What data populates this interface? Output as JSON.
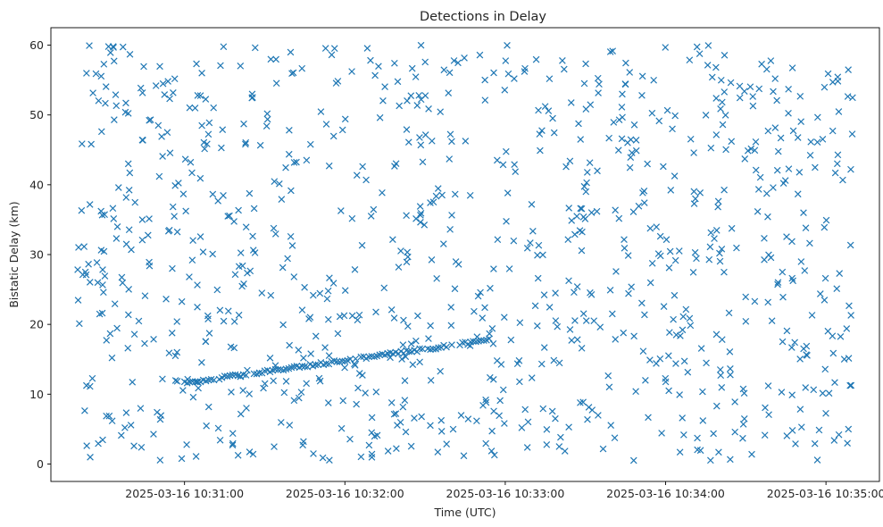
{
  "chart_data": {
    "type": "scatter",
    "title": "Detections in Delay",
    "xlabel": "Time (UTC)",
    "ylabel": "Bistatic Delay (km)",
    "x_axis_type": "time",
    "xlim": [
      "2025-03-16 10:30:10",
      "2025-03-16 10:35:20"
    ],
    "ylim": [
      -2.5,
      62.5
    ],
    "xticks": [
      "2025-03-16 10:31:00",
      "2025-03-16 10:32:00",
      "2025-03-16 10:33:00",
      "2025-03-16 10:34:00",
      "2025-03-16 10:35:00"
    ],
    "yticks": [
      0,
      10,
      20,
      30,
      40,
      50,
      60
    ],
    "grid": false,
    "marker": "x",
    "series_color": "#1f77b4",
    "time_span": [
      "2025-03-16 10:30:20",
      "2025-03-16 10:35:10"
    ],
    "track": {
      "start": [
        "2025-03-16 10:31:00",
        11.6
      ],
      "end": [
        "2025-03-16 10:32:55",
        17.8
      ]
    },
    "clutter": {
      "count": 950,
      "delay_range": [
        0.5,
        60
      ]
    }
  }
}
